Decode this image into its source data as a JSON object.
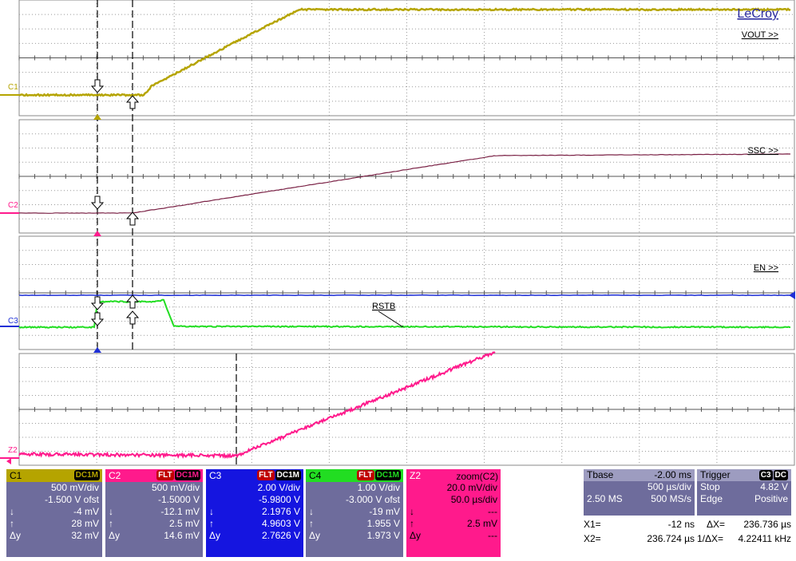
{
  "brand": "LeCroy",
  "traces": {
    "c1": {
      "tag": "C1",
      "label": "VOUT >>",
      "color": "#b5a400"
    },
    "c2": {
      "tag": "C2",
      "label": "SSC >>",
      "color": "#7a2145"
    },
    "c3": {
      "tag": "C3",
      "label": "EN >>",
      "color": "#1e2fd6"
    },
    "c4": {
      "tag": "C4",
      "label": "RSTB",
      "color": "#22dd22"
    },
    "z2": {
      "tag": "Z2",
      "color": "#ff1a8c"
    }
  },
  "channels": [
    {
      "name": "C1",
      "badges": [
        "DC1M"
      ],
      "scale": "500 mV/div",
      "offset": "-1.500 V ofst",
      "down": "-4 mV",
      "up": "28 mV",
      "dy": "32 mV",
      "bg": "#6e6c9c",
      "head": "#b5a400",
      "text": "#ffffff"
    },
    {
      "name": "C2",
      "badges": [
        "FLT",
        "DC1M"
      ],
      "scale": "500 mV/div",
      "offset": "-1.5000 V",
      "down": "-12.1 mV",
      "up": "2.5 mV",
      "dy": "14.6 mV",
      "bg": "#6e6c9c",
      "head": "#ff1a8c",
      "text": "#ffffff"
    },
    {
      "name": "C3",
      "badges": [
        "FLT",
        "DC1M"
      ],
      "scale": "2.00 V/div",
      "offset": "-5.9800 V",
      "down": "2.1976 V",
      "up": "4.9603 V",
      "dy": "2.7626 V",
      "bg": "#1515e0",
      "head": "#1515e0",
      "text": "#ffffff"
    },
    {
      "name": "C4",
      "badges": [
        "FLT",
        "DC1M"
      ],
      "scale": "1.00 V/div",
      "offset": "-3.000 V ofst",
      "down": "-19 mV",
      "up": "1.955 V",
      "dy": "1.973 V",
      "bg": "#6e6c9c",
      "head": "#22dd22",
      "text": "#ffffff"
    },
    {
      "name": "Z2",
      "badges": [],
      "title": "zoom(C2)",
      "scale": "20.0 mV/div",
      "offset": "50.0 µs/div",
      "down": "---",
      "up": "2.5 mV",
      "dy": "---",
      "bg": "#ff1a8c",
      "head": "#ff1a8c",
      "text": "#000000"
    }
  ],
  "row_labels": {
    "down": "↓",
    "up": "↑",
    "dy": "Δy"
  },
  "timebase": {
    "title": "Tbase",
    "delay": "-2.00 ms",
    "per_div": "500 µs/div",
    "samples": "2.50 MS",
    "rate": "500 MS/s"
  },
  "trigger": {
    "title": "Trigger",
    "source": "C3",
    "coupling": "DC",
    "mode": "Stop",
    "level": "4.82 V",
    "type": "Edge",
    "slope": "Positive"
  },
  "cursors": {
    "x1_label": "X1=",
    "x1": "-12 ns",
    "dx_label": "ΔX=",
    "dx": "236.736 µs",
    "x2_label": "X2=",
    "x2": "236.724 µs",
    "inv_label": "1/ΔX=",
    "inv": "4.22411 kHz"
  }
}
